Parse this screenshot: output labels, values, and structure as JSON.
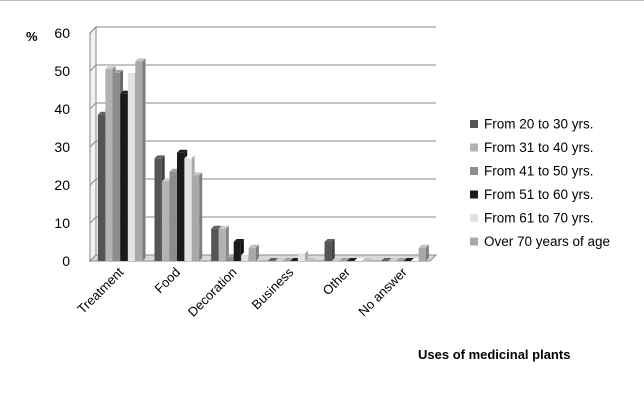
{
  "chart_data": {
    "type": "bar",
    "ylabel": "%",
    "xlabel": "Uses of medicinal plants",
    "ylim": [
      0,
      60
    ],
    "yticks": [
      0,
      10,
      20,
      30,
      40,
      50,
      60
    ],
    "grid": true,
    "legend_position": "right",
    "categories": [
      "Treatment",
      "Food",
      "Decoration",
      "Business",
      "Other",
      "No answer"
    ],
    "series": [
      {
        "name": "From 20 to 30 yrs.",
        "color": "#555555",
        "values": [
          38.5,
          27,
          8.5,
          0,
          5,
          0
        ]
      },
      {
        "name": "From 31 to 40 yrs.",
        "color": "#b3b3b3",
        "values": [
          50.5,
          21,
          8.5,
          0,
          0,
          0
        ]
      },
      {
        "name": "From 41 to 50 yrs.",
        "color": "#8c8c8c",
        "values": [
          49.5,
          23.5,
          1,
          0,
          0,
          0
        ]
      },
      {
        "name": "From 51 to 60 yrs.",
        "color": "#1a1a1a",
        "values": [
          44,
          28.5,
          5,
          0,
          0,
          0
        ]
      },
      {
        "name": "From 61 to 70 yrs.",
        "color": "#e2e2e2",
        "values": [
          49.5,
          27,
          1.5,
          2,
          0,
          0
        ]
      },
      {
        "name": "Over 70 years of age",
        "color": "#a8a8a8",
        "values": [
          52.5,
          22.5,
          3.5,
          0,
          0,
          3.5
        ]
      }
    ]
  }
}
